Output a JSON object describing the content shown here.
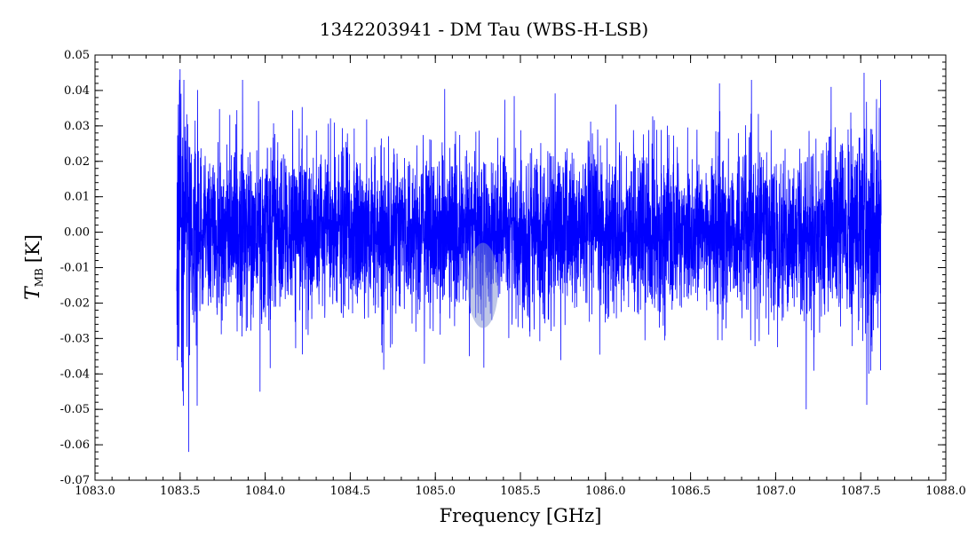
{
  "chart_data": {
    "type": "line",
    "title": "1342203941 - DM Tau (WBS-H-LSB)",
    "xlabel": "Frequency [GHz]",
    "ylabel": {
      "main": "T",
      "subscript": "MB",
      "unit": "[K]"
    },
    "xlim": [
      1083.0,
      1088.0
    ],
    "ylim": [
      -0.07,
      0.05
    ],
    "x_ticks": [
      1083.0,
      1083.5,
      1084.0,
      1084.5,
      1085.0,
      1085.5,
      1086.0,
      1086.5,
      1087.0,
      1087.5,
      1088.0
    ],
    "x_tick_labels": [
      "1083.0",
      "1083.5",
      "1084.0",
      "1084.5",
      "1085.0",
      "1085.5",
      "1086.0",
      "1086.5",
      "1087.0",
      "1087.5",
      "1088.0"
    ],
    "y_ticks": [
      0.05,
      0.04,
      0.03,
      0.02,
      0.01,
      0.0,
      -0.01,
      -0.02,
      -0.03,
      -0.04,
      -0.05,
      -0.06,
      -0.07
    ],
    "y_tick_labels": [
      "0.05",
      "0.04",
      "0.03",
      "0.02",
      "0.01",
      "0.00",
      "-0.01",
      "-0.02",
      "-0.03",
      "-0.04",
      "-0.05",
      "-0.06",
      "-0.07"
    ],
    "grid": false,
    "series": [
      {
        "color": "#0000ff",
        "x_range": [
          1083.48,
          1087.62
        ],
        "noise_rms": 0.0115,
        "baseline": 0.0,
        "notable_points": [
          {
            "x": 1083.5,
            "y": 0.046
          },
          {
            "x": 1083.52,
            "y": -0.049
          },
          {
            "x": 1083.55,
            "y": -0.062
          },
          {
            "x": 1083.6,
            "y": -0.049
          },
          {
            "x": 1083.97,
            "y": -0.045
          },
          {
            "x": 1085.2,
            "y": -0.035
          },
          {
            "x": 1086.67,
            "y": 0.042
          },
          {
            "x": 1087.18,
            "y": -0.05
          },
          {
            "x": 1087.52,
            "y": 0.045
          },
          {
            "x": 1087.56,
            "y": -0.032
          }
        ]
      }
    ],
    "highlight": {
      "shape": "ellipse",
      "center": {
        "x": 1085.28,
        "y": -0.015
      },
      "radius": {
        "x": 0.09,
        "y": 0.012
      },
      "color": "#8090d0"
    }
  }
}
